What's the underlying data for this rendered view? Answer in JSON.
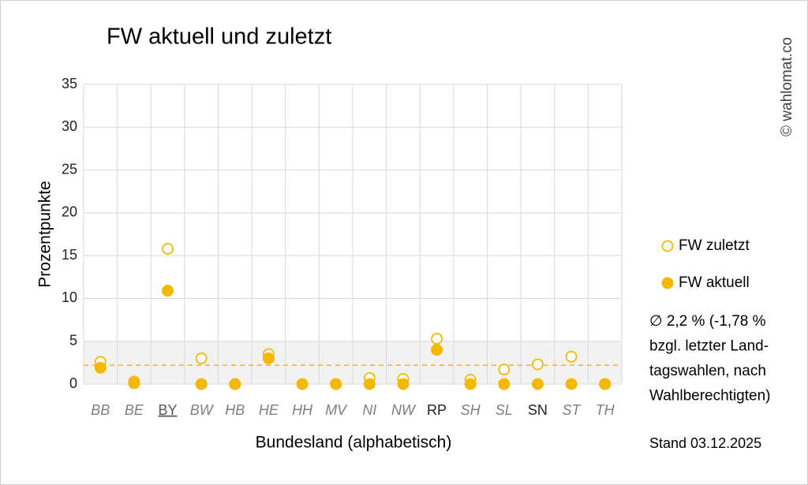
{
  "chart_data": {
    "type": "scatter",
    "title": "FW aktuell und zuletzt",
    "x_label": "Bundesland (alphabetisch)",
    "y_label": "Prozentpunkte",
    "categories": [
      "BB",
      "BE",
      "BY",
      "BW",
      "HB",
      "HE",
      "HH",
      "MV",
      "NI",
      "NW",
      "RP",
      "SH",
      "SL",
      "SN",
      "ST",
      "TH"
    ],
    "category_style": [
      "italic",
      "italic",
      "underline",
      "italic",
      "italic",
      "italic",
      "italic",
      "italic",
      "italic",
      "italic",
      "normal",
      "italic",
      "italic",
      "normal",
      "italic",
      "italic"
    ],
    "series": [
      {
        "name": "FW zuletzt",
        "color": "#f5b800",
        "marker": "open",
        "values": [
          2.6,
          0.3,
          15.8,
          3.0,
          0,
          3.5,
          0,
          0,
          0.7,
          0.6,
          5.3,
          0.5,
          1.7,
          2.3,
          3.2,
          0
        ]
      },
      {
        "name": "FW aktuell",
        "color": "#f5b800",
        "marker": "filled",
        "values": [
          1.9,
          0.1,
          10.9,
          0,
          0,
          3.0,
          0,
          0,
          0,
          0,
          4.0,
          0,
          0,
          0,
          0,
          0
        ]
      }
    ],
    "average": 2.2,
    "band": [
      0,
      5
    ],
    "ylim": [
      0,
      35
    ],
    "yticks": [
      0,
      5,
      10,
      15,
      20,
      25,
      30,
      35
    ],
    "grid": true,
    "annotation_lines": [
      "∅ 2,2 % (-1,78 %",
      "bzgl. letzter Land-",
      "tagswahlen, nach",
      "Wahlberechtigten)"
    ],
    "date_note": "Stand 03.12.2025",
    "copyright": "© wahlomat.co"
  }
}
